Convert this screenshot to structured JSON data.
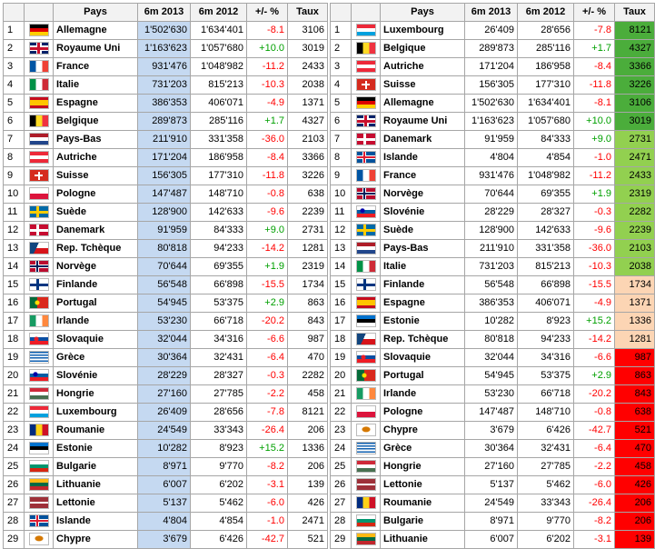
{
  "left": {
    "headers": [
      "",
      "",
      "Pays",
      "6m 2013",
      "6m 2012",
      "+/- %",
      "Taux"
    ],
    "rows": [
      {
        "rank": "1",
        "country": "Allemagne",
        "v2013": "1'502'630",
        "v2012": "1'634'401",
        "change": "-8.1",
        "rate": "3106",
        "flag": "de-flag-icon"
      },
      {
        "rank": "2",
        "country": "Royaume Uni",
        "v2013": "1'163'623",
        "v2012": "1'057'680",
        "change": "+10.0",
        "rate": "3019",
        "flag": "gb-flag-icon"
      },
      {
        "rank": "3",
        "country": "France",
        "v2013": "931'476",
        "v2012": "1'048'982",
        "change": "-11.2",
        "rate": "2433",
        "flag": "fr-flag-icon"
      },
      {
        "rank": "4",
        "country": "Italie",
        "v2013": "731'203",
        "v2012": "815'213",
        "change": "-10.3",
        "rate": "2038",
        "flag": "it-flag-icon"
      },
      {
        "rank": "5",
        "country": "Espagne",
        "v2013": "386'353",
        "v2012": "406'071",
        "change": "-4.9",
        "rate": "1371",
        "flag": "es-flag-icon"
      },
      {
        "rank": "6",
        "country": "Belgique",
        "v2013": "289'873",
        "v2012": "285'116",
        "change": "+1.7",
        "rate": "4327",
        "flag": "be-flag-icon"
      },
      {
        "rank": "7",
        "country": "Pays-Bas",
        "v2013": "211'910",
        "v2012": "331'358",
        "change": "-36.0",
        "rate": "2103",
        "flag": "nl-flag-icon"
      },
      {
        "rank": "8",
        "country": "Autriche",
        "v2013": "171'204",
        "v2012": "186'958",
        "change": "-8.4",
        "rate": "3366",
        "flag": "at-flag-icon"
      },
      {
        "rank": "9",
        "country": "Suisse",
        "v2013": "156'305",
        "v2012": "177'310",
        "change": "-11.8",
        "rate": "3226",
        "flag": "ch-flag-icon"
      },
      {
        "rank": "10",
        "country": "Pologne",
        "v2013": "147'487",
        "v2012": "148'710",
        "change": "-0.8",
        "rate": "638",
        "flag": "pl-flag-icon"
      },
      {
        "rank": "11",
        "country": "Suède",
        "v2013": "128'900",
        "v2012": "142'633",
        "change": "-9.6",
        "rate": "2239",
        "flag": "se-flag-icon"
      },
      {
        "rank": "12",
        "country": "Danemark",
        "v2013": "91'959",
        "v2012": "84'333",
        "change": "+9.0",
        "rate": "2731",
        "flag": "dk-flag-icon"
      },
      {
        "rank": "13",
        "country": "Rep. Tchèque",
        "v2013": "80'818",
        "v2012": "94'233",
        "change": "-14.2",
        "rate": "1281",
        "flag": "cz-flag-icon"
      },
      {
        "rank": "14",
        "country": "Norvège",
        "v2013": "70'644",
        "v2012": "69'355",
        "change": "+1.9",
        "rate": "2319",
        "flag": "no-flag-icon"
      },
      {
        "rank": "15",
        "country": "Finlande",
        "v2013": "56'548",
        "v2012": "66'898",
        "change": "-15.5",
        "rate": "1734",
        "flag": "fi-flag-icon"
      },
      {
        "rank": "16",
        "country": "Portugal",
        "v2013": "54'945",
        "v2012": "53'375",
        "change": "+2.9",
        "rate": "863",
        "flag": "pt-flag-icon"
      },
      {
        "rank": "17",
        "country": "Irlande",
        "v2013": "53'230",
        "v2012": "66'718",
        "change": "-20.2",
        "rate": "843",
        "flag": "ie-flag-icon"
      },
      {
        "rank": "18",
        "country": "Slovaquie",
        "v2013": "32'044",
        "v2012": "34'316",
        "change": "-6.6",
        "rate": "987",
        "flag": "sk-flag-icon"
      },
      {
        "rank": "19",
        "country": "Grèce",
        "v2013": "30'364",
        "v2012": "32'431",
        "change": "-6.4",
        "rate": "470",
        "flag": "gr-flag-icon"
      },
      {
        "rank": "20",
        "country": "Slovénie",
        "v2013": "28'229",
        "v2012": "28'327",
        "change": "-0.3",
        "rate": "2282",
        "flag": "si-flag-icon"
      },
      {
        "rank": "21",
        "country": "Hongrie",
        "v2013": "27'160",
        "v2012": "27'785",
        "change": "-2.2",
        "rate": "458",
        "flag": "hu-flag-icon"
      },
      {
        "rank": "22",
        "country": "Luxembourg",
        "v2013": "26'409",
        "v2012": "28'656",
        "change": "-7.8",
        "rate": "8121",
        "flag": "lu-flag-icon"
      },
      {
        "rank": "23",
        "country": "Roumanie",
        "v2013": "24'549",
        "v2012": "33'343",
        "change": "-26.4",
        "rate": "206",
        "flag": "ro-flag-icon"
      },
      {
        "rank": "24",
        "country": "Estonie",
        "v2013": "10'282",
        "v2012": "8'923",
        "change": "+15.2",
        "rate": "1336",
        "flag": "ee-flag-icon"
      },
      {
        "rank": "25",
        "country": "Bulgarie",
        "v2013": "8'971",
        "v2012": "9'770",
        "change": "-8.2",
        "rate": "206",
        "flag": "bg-flag-icon"
      },
      {
        "rank": "26",
        "country": "Lithuanie",
        "v2013": "6'007",
        "v2012": "6'202",
        "change": "-3.1",
        "rate": "139",
        "flag": "lt-flag-icon"
      },
      {
        "rank": "27",
        "country": "Lettonie",
        "v2013": "5'137",
        "v2012": "5'462",
        "change": "-6.0",
        "rate": "426",
        "flag": "lv-flag-icon"
      },
      {
        "rank": "28",
        "country": "Islande",
        "v2013": "4'804",
        "v2012": "4'854",
        "change": "-1.0",
        "rate": "2471",
        "flag": "is-flag-icon"
      },
      {
        "rank": "29",
        "country": "Chypre",
        "v2013": "3'679",
        "v2012": "6'426",
        "change": "-42.7",
        "rate": "521",
        "flag": "cy-flag-icon"
      }
    ]
  },
  "right": {
    "headers": [
      "",
      "",
      "Pays",
      "6m 2013",
      "6m 2012",
      "+/- %",
      "Taux"
    ],
    "rows": [
      {
        "rank": "1",
        "country": "Luxembourg",
        "v2013": "26'409",
        "v2012": "28'656",
        "change": "-7.8",
        "rate": "8121",
        "flag": "lu-flag-icon",
        "tier": "g"
      },
      {
        "rank": "2",
        "country": "Belgique",
        "v2013": "289'873",
        "v2012": "285'116",
        "change": "+1.7",
        "rate": "4327",
        "flag": "be-flag-icon",
        "tier": "g"
      },
      {
        "rank": "3",
        "country": "Autriche",
        "v2013": "171'204",
        "v2012": "186'958",
        "change": "-8.4",
        "rate": "3366",
        "flag": "at-flag-icon",
        "tier": "g"
      },
      {
        "rank": "4",
        "country": "Suisse",
        "v2013": "156'305",
        "v2012": "177'310",
        "change": "-11.8",
        "rate": "3226",
        "flag": "ch-flag-icon",
        "tier": "g"
      },
      {
        "rank": "5",
        "country": "Allemagne",
        "v2013": "1'502'630",
        "v2012": "1'634'401",
        "change": "-8.1",
        "rate": "3106",
        "flag": "de-flag-icon",
        "tier": "g"
      },
      {
        "rank": "6",
        "country": "Royaume Uni",
        "v2013": "1'163'623",
        "v2012": "1'057'680",
        "change": "+10.0",
        "rate": "3019",
        "flag": "gb-flag-icon",
        "tier": "g"
      },
      {
        "rank": "7",
        "country": "Danemark",
        "v2013": "91'959",
        "v2012": "84'333",
        "change": "+9.0",
        "rate": "2731",
        "flag": "dk-flag-icon",
        "tier": "l"
      },
      {
        "rank": "8",
        "country": "Islande",
        "v2013": "4'804",
        "v2012": "4'854",
        "change": "-1.0",
        "rate": "2471",
        "flag": "is-flag-icon",
        "tier": "l"
      },
      {
        "rank": "9",
        "country": "France",
        "v2013": "931'476",
        "v2012": "1'048'982",
        "change": "-11.2",
        "rate": "2433",
        "flag": "fr-flag-icon",
        "tier": "l"
      },
      {
        "rank": "10",
        "country": "Norvège",
        "v2013": "70'644",
        "v2012": "69'355",
        "change": "+1.9",
        "rate": "2319",
        "flag": "no-flag-icon",
        "tier": "l"
      },
      {
        "rank": "11",
        "country": "Slovénie",
        "v2013": "28'229",
        "v2012": "28'327",
        "change": "-0.3",
        "rate": "2282",
        "flag": "si-flag-icon",
        "tier": "l"
      },
      {
        "rank": "12",
        "country": "Suède",
        "v2013": "128'900",
        "v2012": "142'633",
        "change": "-9.6",
        "rate": "2239",
        "flag": "se-flag-icon",
        "tier": "l"
      },
      {
        "rank": "13",
        "country": "Pays-Bas",
        "v2013": "211'910",
        "v2012": "331'358",
        "change": "-36.0",
        "rate": "2103",
        "flag": "nl-flag-icon",
        "tier": "l"
      },
      {
        "rank": "14",
        "country": "Italie",
        "v2013": "731'203",
        "v2012": "815'213",
        "change": "-10.3",
        "rate": "2038",
        "flag": "it-flag-icon",
        "tier": "l"
      },
      {
        "rank": "15",
        "country": "Finlande",
        "v2013": "56'548",
        "v2012": "66'898",
        "change": "-15.5",
        "rate": "1734",
        "flag": "fi-flag-icon",
        "tier": "o"
      },
      {
        "rank": "16",
        "country": "Espagne",
        "v2013": "386'353",
        "v2012": "406'071",
        "change": "-4.9",
        "rate": "1371",
        "flag": "es-flag-icon",
        "tier": "o"
      },
      {
        "rank": "17",
        "country": "Estonie",
        "v2013": "10'282",
        "v2012": "8'923",
        "change": "+15.2",
        "rate": "1336",
        "flag": "ee-flag-icon",
        "tier": "o"
      },
      {
        "rank": "18",
        "country": "Rep. Tchèque",
        "v2013": "80'818",
        "v2012": "94'233",
        "change": "-14.2",
        "rate": "1281",
        "flag": "cz-flag-icon",
        "tier": "o"
      },
      {
        "rank": "19",
        "country": "Slovaquie",
        "v2013": "32'044",
        "v2012": "34'316",
        "change": "-6.6",
        "rate": "987",
        "flag": "sk-flag-icon",
        "tier": "r"
      },
      {
        "rank": "20",
        "country": "Portugal",
        "v2013": "54'945",
        "v2012": "53'375",
        "change": "+2.9",
        "rate": "863",
        "flag": "pt-flag-icon",
        "tier": "r"
      },
      {
        "rank": "21",
        "country": "Irlande",
        "v2013": "53'230",
        "v2012": "66'718",
        "change": "-20.2",
        "rate": "843",
        "flag": "ie-flag-icon",
        "tier": "r"
      },
      {
        "rank": "22",
        "country": "Pologne",
        "v2013": "147'487",
        "v2012": "148'710",
        "change": "-0.8",
        "rate": "638",
        "flag": "pl-flag-icon",
        "tier": "r"
      },
      {
        "rank": "23",
        "country": "Chypre",
        "v2013": "3'679",
        "v2012": "6'426",
        "change": "-42.7",
        "rate": "521",
        "flag": "cy-flag-icon",
        "tier": "r"
      },
      {
        "rank": "24",
        "country": "Grèce",
        "v2013": "30'364",
        "v2012": "32'431",
        "change": "-6.4",
        "rate": "470",
        "flag": "gr-flag-icon",
        "tier": "r"
      },
      {
        "rank": "25",
        "country": "Hongrie",
        "v2013": "27'160",
        "v2012": "27'785",
        "change": "-2.2",
        "rate": "458",
        "flag": "hu-flag-icon",
        "tier": "r"
      },
      {
        "rank": "26",
        "country": "Lettonie",
        "v2013": "5'137",
        "v2012": "5'462",
        "change": "-6.0",
        "rate": "426",
        "flag": "lv-flag-icon",
        "tier": "r"
      },
      {
        "rank": "27",
        "country": "Roumanie",
        "v2013": "24'549",
        "v2012": "33'343",
        "change": "-26.4",
        "rate": "206",
        "flag": "ro-flag-icon",
        "tier": "r"
      },
      {
        "rank": "28",
        "country": "Bulgarie",
        "v2013": "8'971",
        "v2012": "9'770",
        "change": "-8.2",
        "rate": "206",
        "flag": "bg-flag-icon",
        "tier": "r"
      },
      {
        "rank": "29",
        "country": "Lithuanie",
        "v2013": "6'007",
        "v2012": "6'202",
        "change": "-3.1",
        "rate": "139",
        "flag": "lt-flag-icon",
        "tier": "r"
      }
    ]
  },
  "colors": {
    "highlight_2013": "#c5d9f1",
    "tier_g": "#4bad3b",
    "tier_l": "#92d050",
    "tier_o": "#fcd5b4",
    "tier_r": "#ff0000",
    "negative": "#ff0000",
    "positive": "#00a000"
  }
}
